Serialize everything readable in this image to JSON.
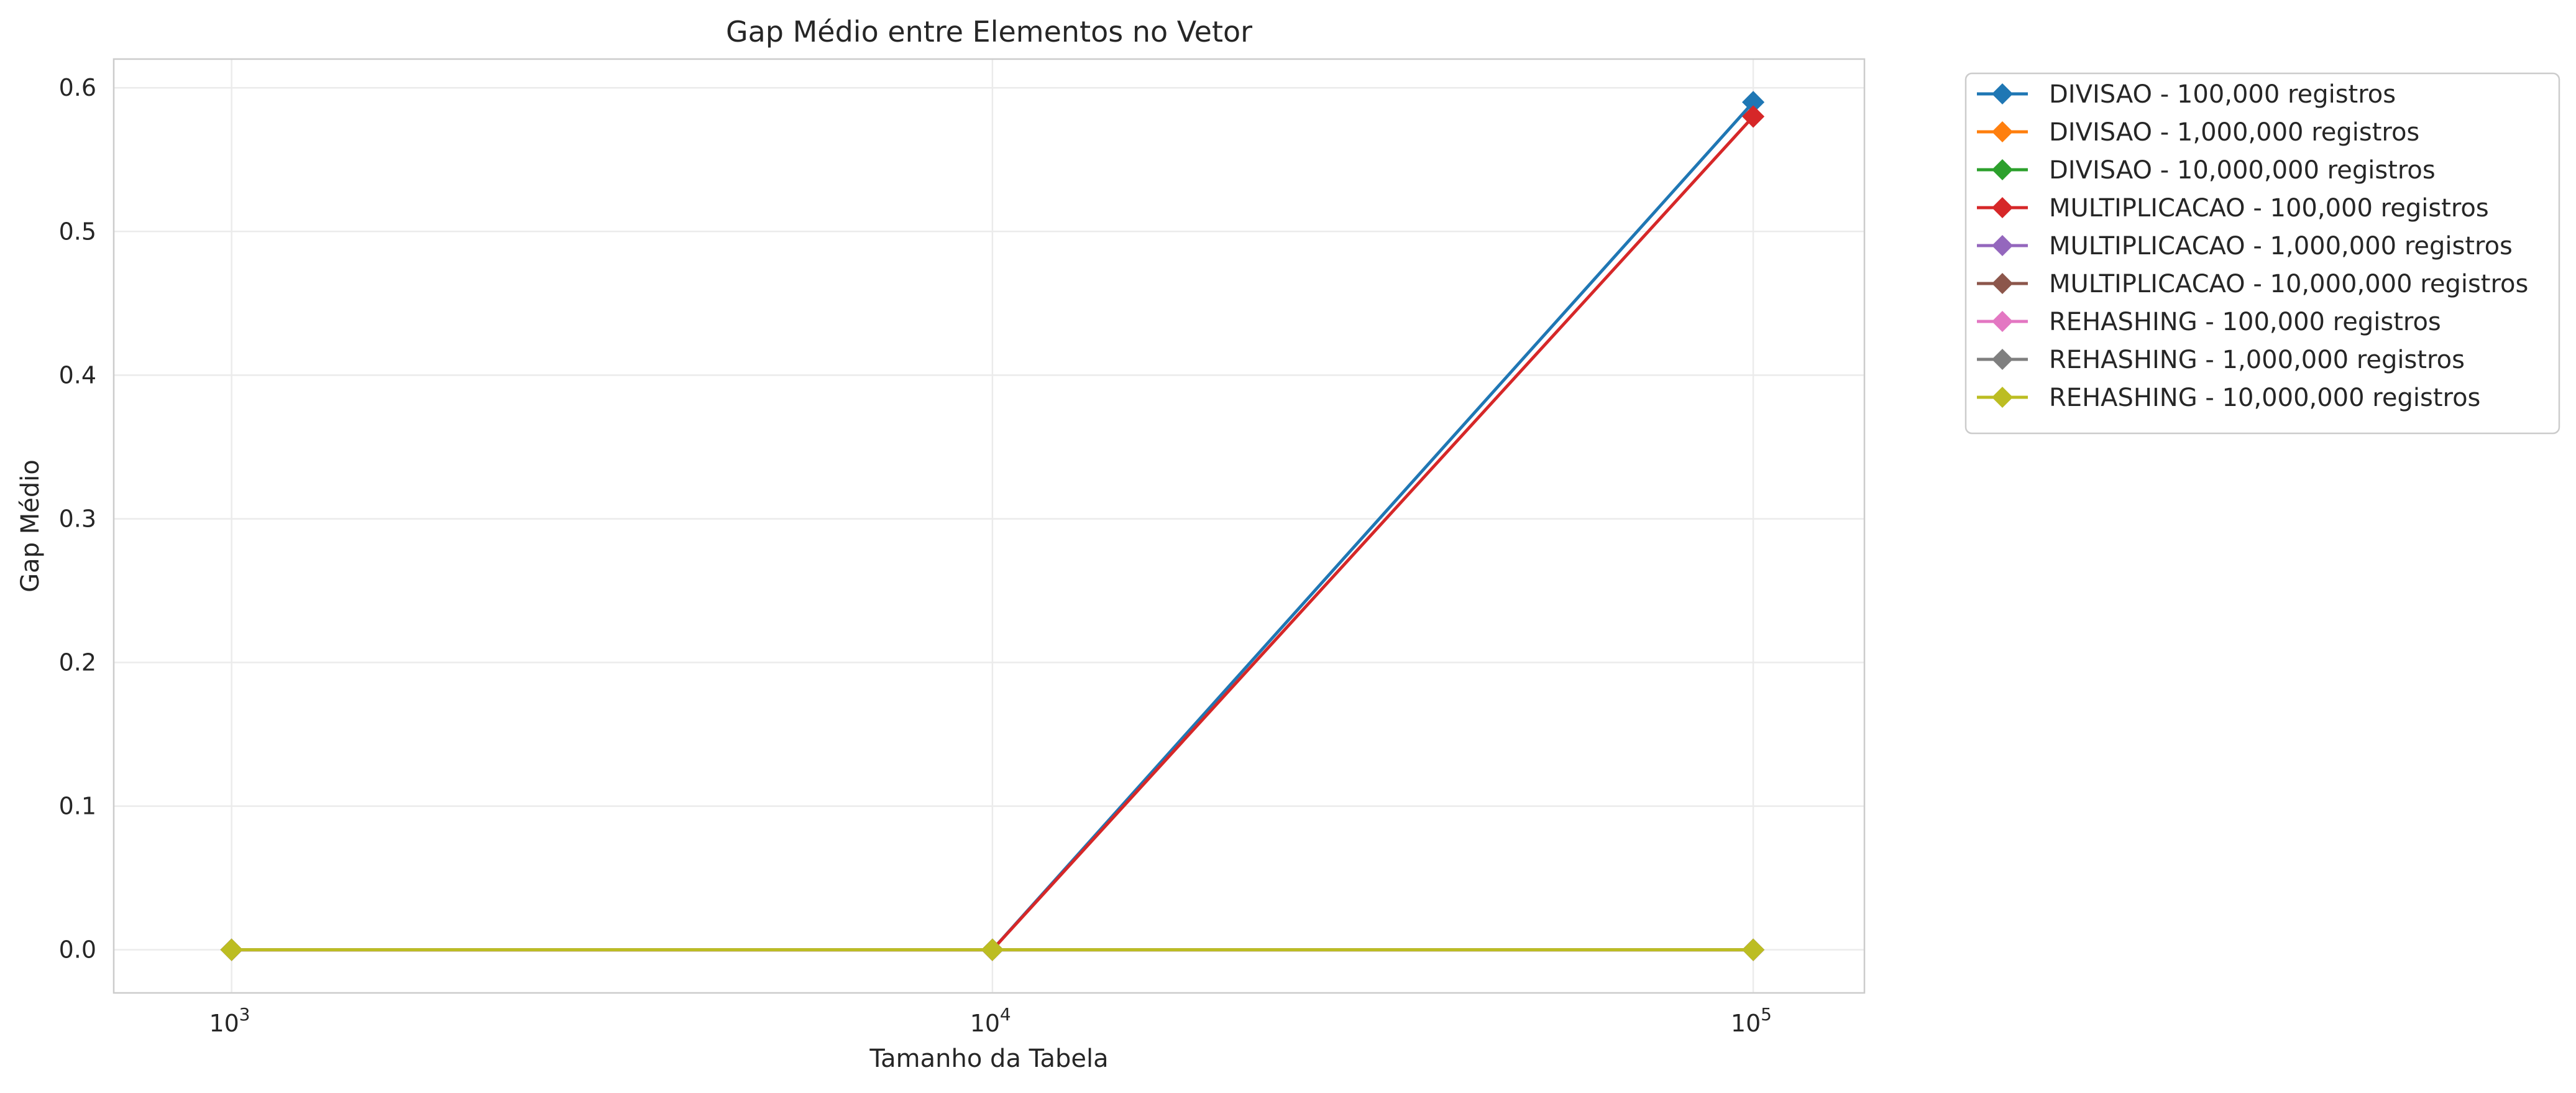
{
  "chart_data": {
    "type": "line",
    "title": "Gap Médio entre Elementos no Vetor",
    "xlabel": "Tamanho da Tabela",
    "ylabel": "Gap Médio",
    "x_scale": "log",
    "x": [
      1000,
      10000,
      100000
    ],
    "x_tick_labels": [
      {
        "base": "10",
        "exp": "3"
      },
      {
        "base": "10",
        "exp": "4"
      },
      {
        "base": "10",
        "exp": "5"
      }
    ],
    "xlim": [
      700,
      140000
    ],
    "ylim": [
      -0.03,
      0.62
    ],
    "y_ticks": [
      "0.0",
      "0.1",
      "0.2",
      "0.3",
      "0.4",
      "0.5",
      "0.6"
    ],
    "grid": true,
    "legend_position": "outside-right",
    "marker": "diamond",
    "series": [
      {
        "name": "DIVISAO - 100,000 registros",
        "color": "#1f77b4",
        "values": [
          0,
          0,
          0.59
        ]
      },
      {
        "name": "DIVISAO - 1,000,000 registros",
        "color": "#ff7f0e",
        "values": [
          0,
          0,
          0
        ]
      },
      {
        "name": "DIVISAO - 10,000,000 registros",
        "color": "#2ca02c",
        "values": [
          0,
          0,
          0
        ]
      },
      {
        "name": "MULTIPLICACAO - 100,000 registros",
        "color": "#d62728",
        "values": [
          0,
          0,
          0.58
        ]
      },
      {
        "name": "MULTIPLICACAO - 1,000,000 registros",
        "color": "#9467bd",
        "values": [
          0,
          0,
          0
        ]
      },
      {
        "name": "MULTIPLICACAO - 10,000,000 registros",
        "color": "#8c564b",
        "values": [
          0,
          0,
          0
        ]
      },
      {
        "name": "REHASHING - 100,000 registros",
        "color": "#e377c2",
        "values": [
          0,
          0,
          0
        ]
      },
      {
        "name": "REHASHING - 1,000,000 registros",
        "color": "#7f7f7f",
        "values": [
          0,
          0,
          0
        ]
      },
      {
        "name": "REHASHING - 10,000,000 registros",
        "color": "#bcbd22",
        "values": [
          0,
          0,
          0
        ]
      }
    ]
  }
}
